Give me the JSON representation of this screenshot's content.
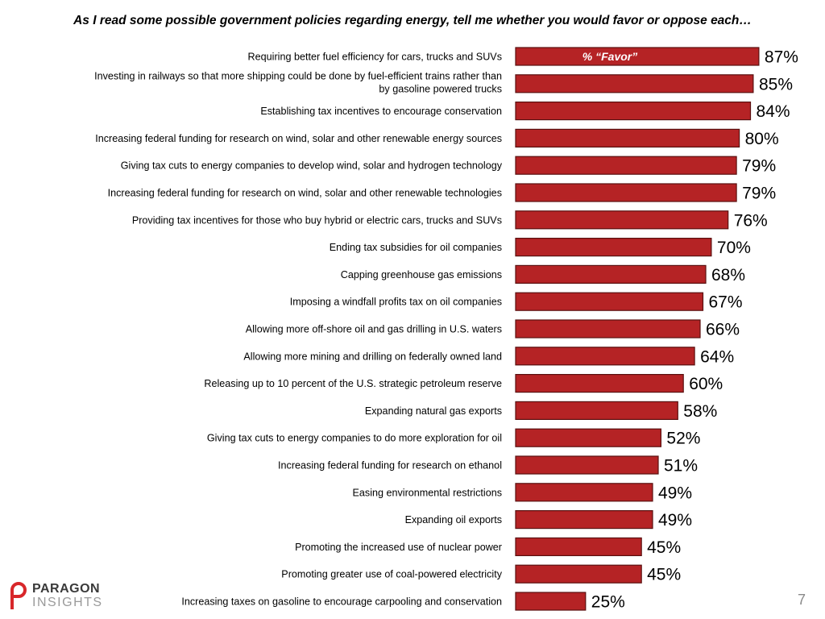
{
  "title": "As I read some possible government policies regarding energy, tell me whether you would favor or oppose each…",
  "page_number": "7",
  "logo": {
    "line1": "PARAGON",
    "line2": "INSIGHTS"
  },
  "colors": {
    "bar": "#b52325",
    "bar_stroke": "#5a1010"
  },
  "chart_data": {
    "type": "bar",
    "orientation": "horizontal",
    "series": [
      {
        "name": "% “Favor”",
        "values": [
          87,
          85,
          84,
          80,
          79,
          79,
          76,
          70,
          68,
          67,
          66,
          64,
          60,
          58,
          52,
          51,
          49,
          49,
          45,
          45,
          25
        ]
      }
    ],
    "categories": [
      [
        "Requiring better fuel efficiency for cars, trucks and SUVs"
      ],
      [
        "Investing in railways so that more shipping could be done by fuel-efficient trains rather than",
        "by gasoline powered trucks"
      ],
      [
        "Establishing tax incentives to encourage conservation"
      ],
      [
        "Increasing federal funding for research on wind, solar and other renewable energy sources"
      ],
      [
        "Giving tax cuts to energy companies to develop wind, solar and hydrogen technology"
      ],
      [
        "Increasing federal funding for research on wind, solar and other renewable technologies"
      ],
      [
        "Providing tax incentives for those who buy hybrid or electric cars, trucks and SUVs"
      ],
      [
        "Ending tax subsidies for oil companies"
      ],
      [
        "Capping greenhouse gas emissions"
      ],
      [
        "Imposing a windfall profits tax on oil companies"
      ],
      [
        "Allowing more off-shore oil and gas drilling in U.S. waters"
      ],
      [
        "Allowing more mining and drilling on federally owned land"
      ],
      [
        "Releasing up to 10 percent of the U.S. strategic petroleum reserve"
      ],
      [
        "Expanding natural gas exports"
      ],
      [
        "Giving tax cuts to energy companies to do more exploration for oil"
      ],
      [
        "Increasing federal funding for research on ethanol"
      ],
      [
        "Easing environmental restrictions"
      ],
      [
        "Expanding oil exports"
      ],
      [
        "Promoting the increased use of nuclear power"
      ],
      [
        "Promoting greater use of coal-powered electricity"
      ],
      [
        "Increasing taxes on gasoline to encourage carpooling and conservation"
      ]
    ],
    "value_labels": [
      "87%",
      "85%",
      "84%",
      "80%",
      "79%",
      "79%",
      "76%",
      "70%",
      "68%",
      "67%",
      "66%",
      "64%",
      "60%",
      "58%",
      "52%",
      "51%",
      "49%",
      "49%",
      "45%",
      "45%",
      "25%"
    ],
    "xlim": [
      0,
      100
    ],
    "legend": "inside-top-bar",
    "grid": false
  }
}
